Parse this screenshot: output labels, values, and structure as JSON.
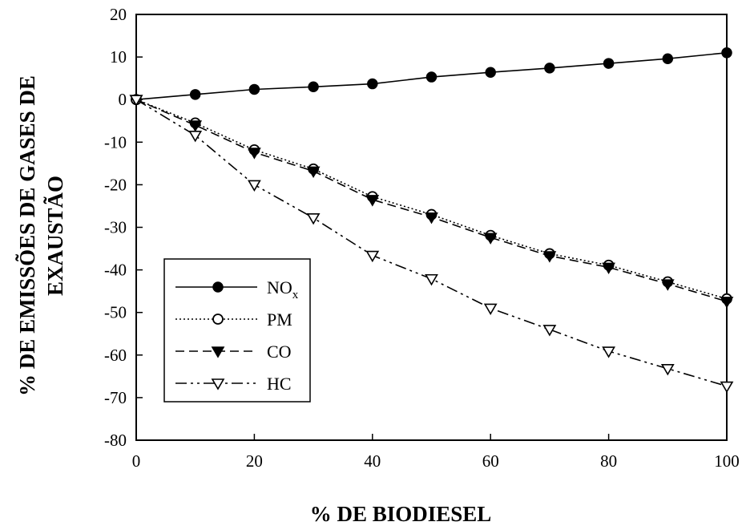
{
  "chart_data": {
    "type": "line",
    "xlabel": "% DE BIODIESEL",
    "ylabel_lines": [
      "% DE EMISSÕES DE GASES DE",
      "EXAUSTÃO"
    ],
    "xlim": [
      0,
      100
    ],
    "ylim": [
      -80,
      20
    ],
    "xticks": [
      0,
      20,
      40,
      60,
      80,
      100
    ],
    "yticks": [
      20,
      10,
      0,
      -10,
      -20,
      -30,
      -40,
      -50,
      -60,
      -70,
      -80
    ],
    "grid": false,
    "legend_position": "lower-left",
    "x": [
      0,
      10,
      20,
      30,
      40,
      50,
      60,
      70,
      80,
      90,
      100
    ],
    "series": [
      {
        "name": "NO",
        "name_sub": "x",
        "marker": "filled-circle",
        "line": "solid",
        "values": [
          0,
          1.2,
          2.4,
          3.0,
          3.7,
          5.3,
          6.4,
          7.4,
          8.5,
          9.6,
          11.0
        ]
      },
      {
        "name": "PM",
        "marker": "open-circle",
        "line": "dotted",
        "values": [
          0,
          -5.5,
          -11.8,
          -16.3,
          -22.8,
          -27.0,
          -31.9,
          -36.2,
          -38.9,
          -42.8,
          -46.8
        ]
      },
      {
        "name": "CO",
        "marker": "filled-triangle-down",
        "line": "dashed",
        "values": [
          0,
          -6.0,
          -12.4,
          -16.8,
          -23.5,
          -27.6,
          -32.4,
          -36.7,
          -39.4,
          -43.3,
          -47.4
        ]
      },
      {
        "name": "HC",
        "marker": "open-triangle-down",
        "line": "dash-dot",
        "values": [
          0,
          -8.4,
          -20.0,
          -27.8,
          -36.6,
          -42.1,
          -49.0,
          -54.0,
          -59.1,
          -63.2,
          -67.3
        ]
      }
    ]
  }
}
